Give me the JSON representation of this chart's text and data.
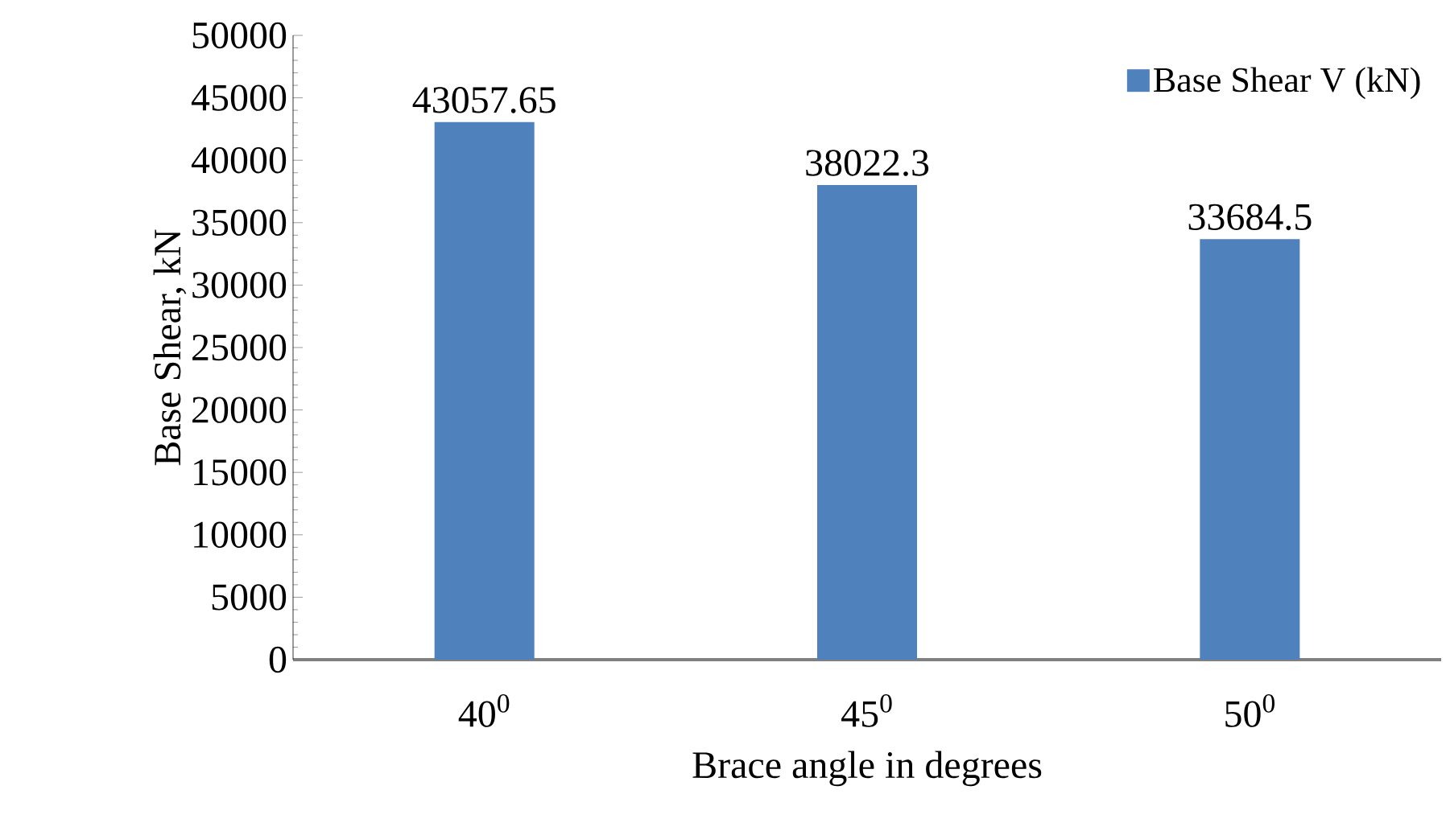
{
  "chart_data": {
    "type": "bar",
    "xlabel": "Brace angle in degrees",
    "ylabel": "Base Shear, kN",
    "categories": [
      "40$^{0}$",
      "45$^{0}$",
      "50$^{0}$"
    ],
    "series": [
      {
        "name": "Base Shear V (kN)",
        "color": "#4f81bd",
        "values": [
          43057.65,
          38022.3,
          33684.5
        ]
      }
    ],
    "ylim": [
      0,
      50000
    ],
    "yticks": [
      0,
      5000,
      10000,
      15000,
      20000,
      25000,
      30000,
      35000,
      40000,
      45000,
      50000
    ],
    "data_labels": true,
    "legend": "top right",
    "grid": false
  }
}
